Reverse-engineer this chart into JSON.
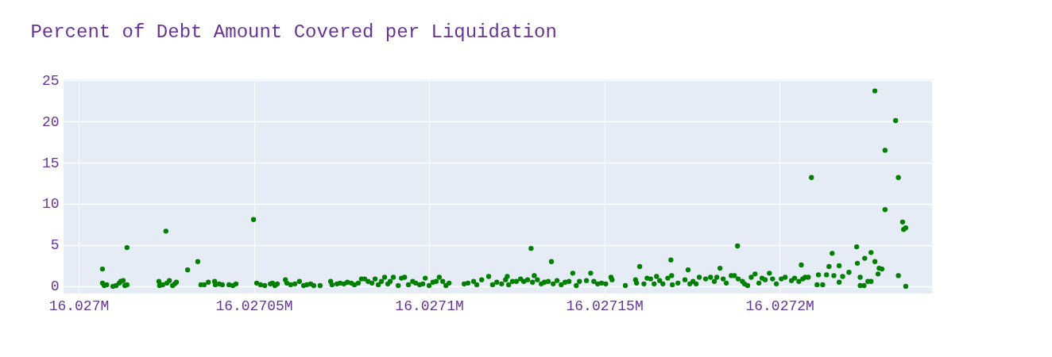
{
  "chart_data": {
    "type": "scatter",
    "title": "Percent of Debt Amount Covered per Liquidation",
    "x": [
      16027006.8,
      16027006.8,
      16027007.3,
      16027008,
      16027009.8,
      16027010.7,
      16027011.6,
      16027012,
      16027012.7,
      16027013.2,
      16027013.8,
      16027013.8,
      16027022.9,
      16027023.1,
      16027024,
      16027024.9,
      16027025.2,
      16027025.9,
      16027026.8,
      16027027.4,
      16027027.9,
      16027031.1,
      16027034,
      16027034.9,
      16027035.8,
      16027037,
      16027038.8,
      16027039,
      16027040.1,
      16027041,
      16027042.9,
      16027044,
      16027044.9,
      16027049.9,
      16027050.8,
      16027051.9,
      16027053.1,
      16027054.7,
      16027055.3,
      16027056,
      16027056.7,
      16027059,
      16027059.4,
      16027060.5,
      16027061.7,
      16027063,
      16027064.2,
      16027065.1,
      16027066.2,
      16027067.1,
      16027068.9,
      16027071.9,
      16027072.3,
      16027073.7,
      16027074.6,
      16027075.7,
      16027076.7,
      16027077.8,
      16027078.7,
      16027079.8,
      16027080.7,
      16027081.6,
      16027082.6,
      16027083.7,
      16027084.6,
      16027085.5,
      16027086.4,
      16027087.3,
      16027088.2,
      16027088.9,
      16027089.8,
      16027091.2,
      16027092.1,
      16027093,
      16027094.1,
      16027095.3,
      16027096.2,
      16027097.3,
      16027098.2,
      16027098.9,
      16027100,
      16027101.1,
      16027102,
      16027102.9,
      16027103.9,
      16027104.8,
      16027105.7,
      16027110,
      16027111.1,
      16027112.7,
      16027113.6,
      16027115,
      16027117,
      16027118.1,
      16027119.3,
      16027120.7,
      16027121.8,
      16027122.3,
      16027122.7,
      16027123.8,
      16027124.9,
      16027126.1,
      16027127,
      16027128.1,
      16027129.1,
      16027129.5,
      16027130,
      16027130.9,
      16027132,
      16027132.9,
      16027134,
      16027134.9,
      16027135.4,
      16027136.5,
      16027137.7,
      16027138.8,
      16027139.9,
      16027141,
      16027142,
      16027142.9,
      16027144.9,
      16027146.1,
      16027147,
      16027148.1,
      16027149.2,
      16027150.4,
      16027151.9,
      16027152.2,
      16027156,
      16027158.9,
      16027159.2,
      16027160.1,
      16027161.3,
      16027162.2,
      16027163.2,
      16027164.2,
      16027164.9,
      16027165.8,
      16027166.7,
      16027168.1,
      16027169,
      16027169.2,
      16027169.4,
      16027171,
      16027173,
      16027173.9,
      16027174.4,
      16027175.3,
      16027176.2,
      16027177.1,
      16027178.9,
      16027180.3,
      16027181.4,
      16027182.1,
      16027183,
      16027183.9,
      16027184.8,
      16027186.2,
      16027187.1,
      16027188,
      16027188.2,
      16027189.4,
      16027190,
      16027190.9,
      16027191.9,
      16027193,
      16027194.1,
      16027195,
      16027195.9,
      16027197.1,
      16027198,
      16027199.1,
      16027200.5,
      16027201.6,
      16027203.4,
      16027204.3,
      16027205.5,
      16027206.2,
      16027206.6,
      16027207.3,
      16027208.2,
      16027209.1,
      16027210.7,
      16027211.1,
      16027212.3,
      16027213.4,
      16027214.1,
      16027215,
      16027215.5,
      16027217,
      16027217,
      16027218,
      16027219.8,
      16027222,
      16027222.2,
      16027223,
      16027223,
      16027224.1,
      16027224.3,
      16027225.2,
      16027226.1,
      16027226.1,
      16027227.2,
      16027227.2,
      16027228.1,
      16027228.4,
      16027229.2,
      16027230.1,
      16027230.1,
      16027233.1,
      16027233.9,
      16027233.9,
      16027235.1,
      16027235.4,
      16027236,
      16027236
    ],
    "series": [
      {
        "color": "#008000",
        "values": [
          2.1,
          0.4,
          0.1,
          0.2,
          0,
          0.1,
          0.4,
          0.6,
          0.7,
          0.1,
          4.7,
          0.2,
          0.6,
          0.1,
          0.2,
          6.7,
          0.4,
          0.7,
          0.1,
          0.3,
          0.5,
          2,
          3,
          0.2,
          0.2,
          0.5,
          0.6,
          0.2,
          0.3,
          0.2,
          0.2,
          0.1,
          0.3,
          8.1,
          0.4,
          0.2,
          0.1,
          0.3,
          0.4,
          0.1,
          0.3,
          0.8,
          0.4,
          0.2,
          0.3,
          0.6,
          0.1,
          0.2,
          0.3,
          0.1,
          0.1,
          0.6,
          0.2,
          0.3,
          0.4,
          0.3,
          0.5,
          0.4,
          0.2,
          0.4,
          0.9,
          0.9,
          0.6,
          0.4,
          0.9,
          0.2,
          0.6,
          1.1,
          0.3,
          0.6,
          1.1,
          0.1,
          1,
          1.1,
          0.2,
          0.6,
          0.4,
          0.2,
          0.3,
          1,
          0.1,
          0.5,
          0.6,
          1.1,
          0.6,
          0.1,
          0.4,
          0.3,
          0.4,
          0.6,
          0.2,
          0.8,
          1.2,
          0.2,
          0.5,
          0.3,
          0.8,
          1.2,
          0.2,
          0.6,
          0.6,
          0.9,
          0.6,
          0.8,
          4.6,
          0.5,
          1.3,
          0.8,
          0.3,
          0.5,
          0.6,
          3,
          0.3,
          0.7,
          0.2,
          0.5,
          0.6,
          1.6,
          0.1,
          0.6,
          0.7,
          1.6,
          0.6,
          0.3,
          0.4,
          0.3,
          1.1,
          0.8,
          0.1,
          0.8,
          0.4,
          2.4,
          0.3,
          1,
          0.9,
          0.3,
          1.2,
          0.7,
          0.3,
          1,
          3.2,
          1.3,
          0.2,
          0.4,
          0.8,
          2,
          0.3,
          0.6,
          0.3,
          1.1,
          0.9,
          1.1,
          0.6,
          1.1,
          2.2,
          0.9,
          0.4,
          1.3,
          1.3,
          4.9,
          0.9,
          0.6,
          0.3,
          0.1,
          1.1,
          1.5,
          0.4,
          1,
          0.8,
          1.6,
          0.9,
          0.3,
          0.9,
          1.1,
          0.7,
          1,
          0.6,
          2.6,
          0.9,
          1.1,
          1.1,
          13.2,
          0.2,
          1.4,
          0.2,
          1.4,
          2.4,
          4,
          1.3,
          0.5,
          2.5,
          1.2,
          1.7,
          4.8,
          2.8,
          1.1,
          0.1,
          0.1,
          3.4,
          0.6,
          4.1,
          0.6,
          23.7,
          3,
          1.5,
          2.2,
          2.1,
          16.5,
          9.3,
          20.1,
          13.2,
          1.3,
          7.8,
          6.9,
          7.1,
          0
        ]
      }
    ],
    "xlim": [
      16026995.7,
      16027243.5
    ],
    "xticks": [
      {
        "value": 16027000,
        "label": "16.027M"
      },
      {
        "value": 16027050,
        "label": "16.02705M"
      },
      {
        "value": 16027100,
        "label": "16.0271M"
      },
      {
        "value": 16027150,
        "label": "16.02715M"
      },
      {
        "value": 16027200,
        "label": "16.0272M"
      }
    ],
    "ylim": [
      -0.87,
      25.1
    ],
    "yticks": [
      0,
      5,
      10,
      15,
      20,
      25
    ],
    "grid": true,
    "marker": "circle"
  }
}
